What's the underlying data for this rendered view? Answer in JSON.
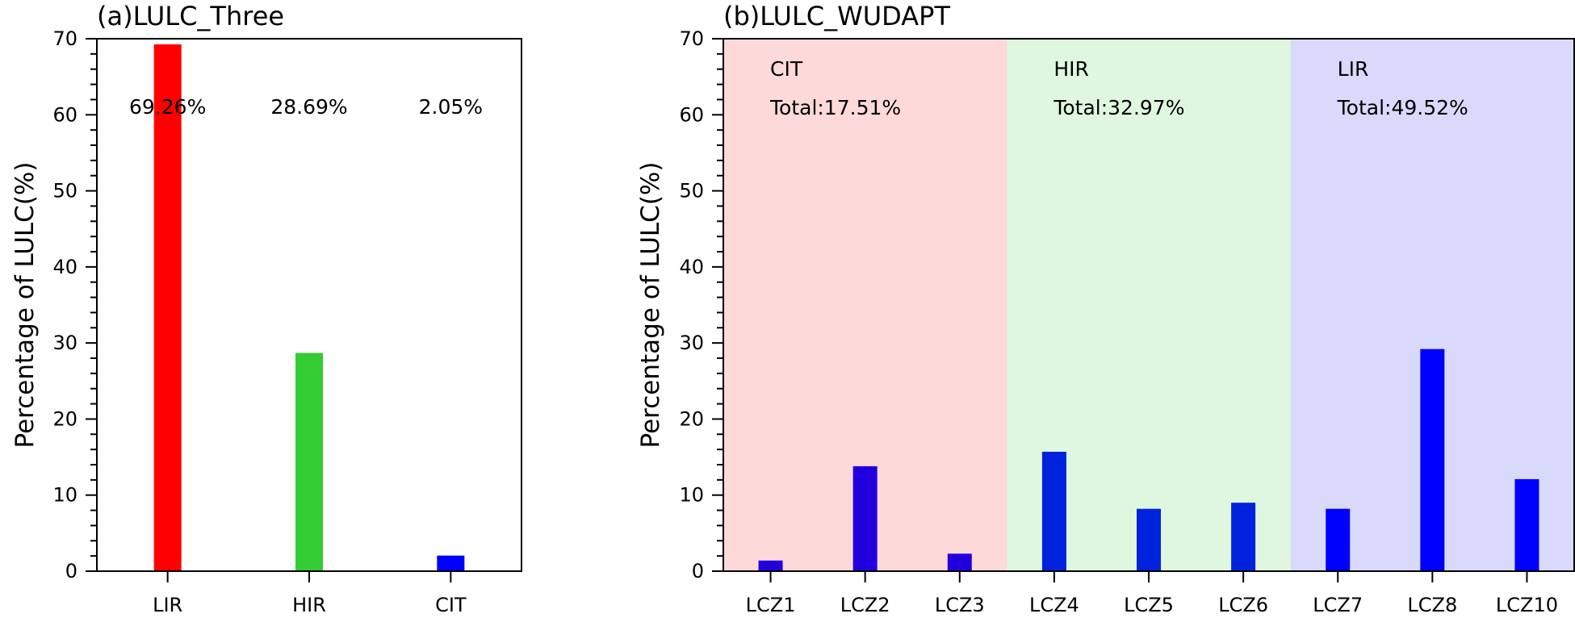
{
  "chart_data": [
    {
      "type": "bar",
      "title": "(a)LULC_Three",
      "xlabel": "",
      "ylabel": "Percentage of LULC(%)",
      "ylim": [
        0,
        70
      ],
      "yticks": [
        0,
        10,
        20,
        30,
        40,
        50,
        60,
        70
      ],
      "grid": false,
      "categories": [
        "LIR",
        "HIR",
        "CIT"
      ],
      "values": [
        69.26,
        28.69,
        2.05
      ],
      "colors": [
        "#ff0000",
        "#33cc33",
        "#0000ff"
      ],
      "data_labels": [
        "69.26%",
        "28.69%",
        "2.05%"
      ]
    },
    {
      "type": "bar",
      "title": "(b)LULC_WUDAPT",
      "xlabel": "",
      "ylabel": "Percentage of LULC(%)",
      "ylim": [
        0,
        70
      ],
      "yticks": [
        0,
        10,
        20,
        30,
        40,
        50,
        60,
        70
      ],
      "grid": false,
      "categories": [
        "LCZ1",
        "LCZ2",
        "LCZ3",
        "LCZ4",
        "LCZ5",
        "LCZ6",
        "LCZ7",
        "LCZ8",
        "LCZ10"
      ],
      "values": [
        1.4,
        13.8,
        2.3,
        15.7,
        8.2,
        9.0,
        8.2,
        29.2,
        12.1
      ],
      "colors": [
        "#2200dd",
        "#2200dd",
        "#2200dd",
        "#0022dd",
        "#0022dd",
        "#0022dd",
        "#0000ff",
        "#0000ff",
        "#0000ff"
      ],
      "groups": [
        {
          "name": "CIT",
          "total": "Total:17.51%",
          "color": "#fdd9d9",
          "categories": [
            "LCZ1",
            "LCZ2",
            "LCZ3"
          ]
        },
        {
          "name": "HIR",
          "total": "Total:32.97%",
          "color": "#dff7df",
          "categories": [
            "LCZ4",
            "LCZ5",
            "LCZ6"
          ]
        },
        {
          "name": "LIR",
          "total": "Total:49.52%",
          "color": "#d9d9fb",
          "categories": [
            "LCZ7",
            "LCZ8",
            "LCZ10"
          ]
        }
      ]
    }
  ]
}
